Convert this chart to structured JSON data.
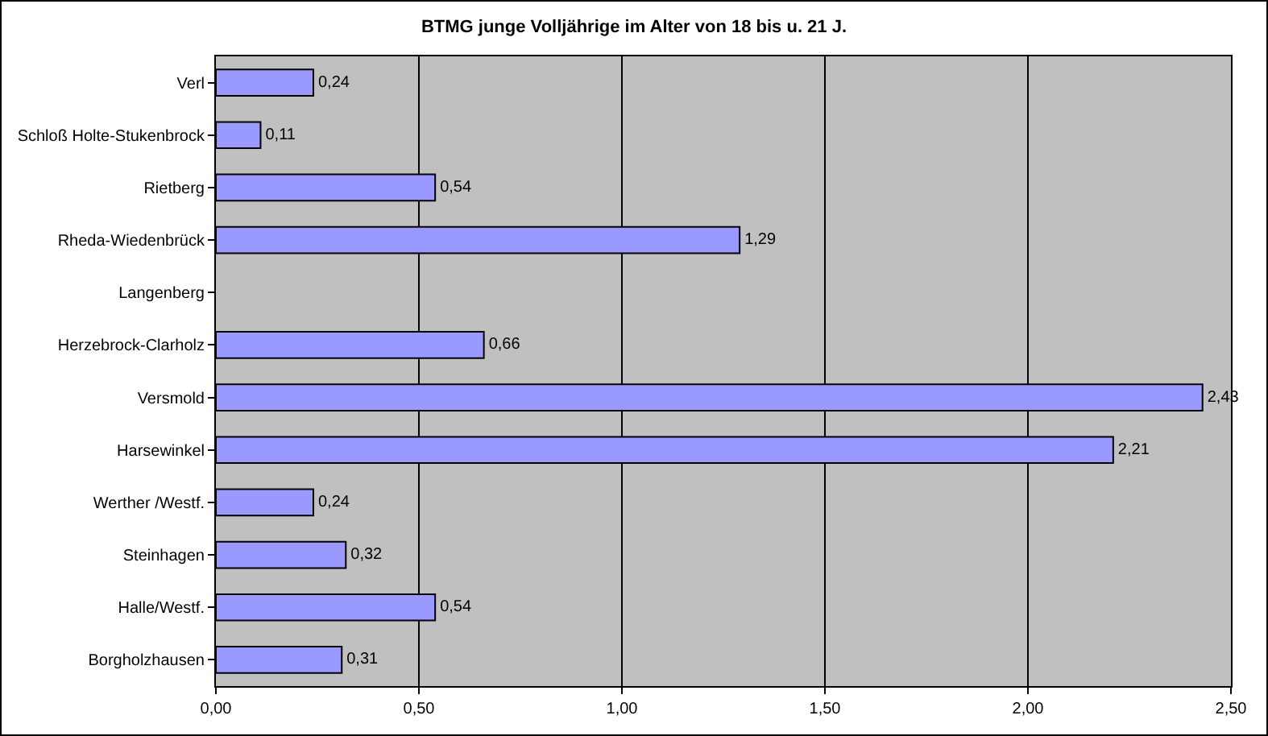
{
  "chart_data": {
    "type": "bar",
    "orientation": "horizontal",
    "title": "BTMG junge Volljährige im Alter von 18 bis u. 21 J.",
    "categories": [
      "Verl",
      "Schloß Holte-Stukenbrock",
      "Rietberg",
      "Rheda-Wiedenbrück",
      "Langenberg",
      "Herzebrock-Clarholz",
      "Versmold",
      "Harsewinkel",
      "Werther /Westf.",
      "Steinhagen",
      "Halle/Westf.",
      "Borgholzhausen"
    ],
    "values": [
      0.24,
      0.11,
      0.54,
      1.29,
      null,
      0.66,
      2.43,
      2.21,
      0.24,
      0.32,
      0.54,
      0.31
    ],
    "value_labels": [
      "0,24",
      "0,11",
      "0,54",
      "1,29",
      null,
      "0,66",
      "2,43",
      "2,21",
      "0,24",
      "0,32",
      "0,54",
      "0,31"
    ],
    "color": "#9999ff",
    "xlim": [
      0,
      2.5
    ],
    "xticks": [
      {
        "value": 0,
        "label": "0,00"
      },
      {
        "value": 0.5,
        "label": "0,50"
      },
      {
        "value": 1,
        "label": "1,00"
      },
      {
        "value": 1.5,
        "label": "1,50"
      },
      {
        "value": 2,
        "label": "2,00"
      },
      {
        "value": 2.5,
        "label": "2,50"
      }
    ],
    "grid": "x"
  }
}
